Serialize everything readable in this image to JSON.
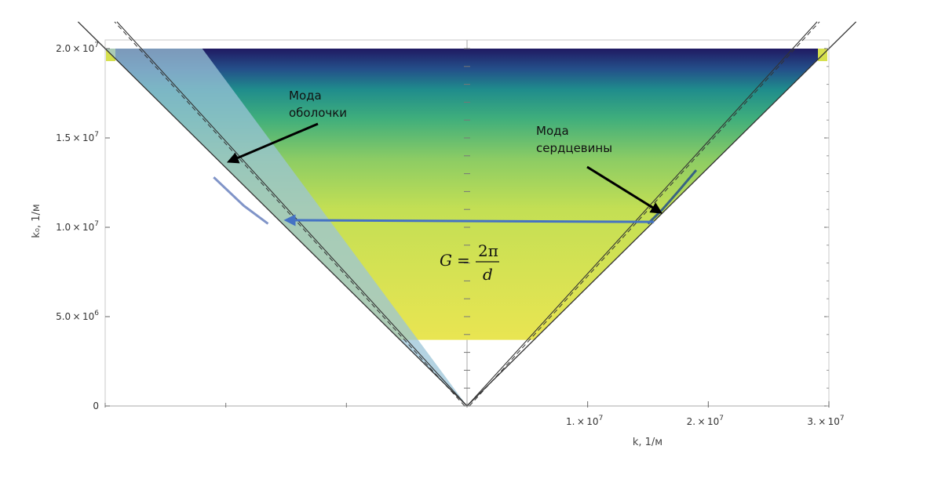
{
  "chart_data": {
    "type": "heatmap",
    "title": "",
    "xlabel": "k, 1/м",
    "ylabel": "k₀, 1/м",
    "xlim": [
      -30000000.0,
      30000000.0
    ],
    "ylim": [
      0,
      20000000.0
    ],
    "x_ticks": [
      {
        "value": 10000000.0,
        "mant": "1.",
        "exp": "7"
      },
      {
        "value": 20000000.0,
        "mant": "2.",
        "exp": "7"
      },
      {
        "value": 30000000.0,
        "mant": "3.",
        "exp": "7"
      }
    ],
    "x_minor_ticks": [
      -30000000.0,
      -20000000.0,
      -10000000.0,
      0
    ],
    "y_ticks": [
      {
        "value": 0,
        "mant": "0",
        "exp": ""
      },
      {
        "value": 5000000.0,
        "mant": "5.0",
        "exp": "6"
      },
      {
        "value": 10000000.0,
        "mant": "1.0",
        "exp": "7"
      },
      {
        "value": 15000000.0,
        "mant": "1.5",
        "exp": "7"
      },
      {
        "value": 20000000.0,
        "mant": "2.0",
        "exp": "7"
      }
    ],
    "light_lines": {
      "outer_slope": 1.5,
      "inner_slope": 1.0
    },
    "field_region": {
      "y_min": 3700000.0,
      "y_max": 20000000.0
    },
    "colormap": [
      "#e9e552",
      "#c3df54",
      "#8ccc64",
      "#3fae7c",
      "#1f8c8c",
      "#244f8a",
      "#201a62"
    ],
    "cladding_mode": {
      "label_line1": "Мода",
      "label_line2": "оболочки",
      "point": [
        -20000000.0,
        13500000.0
      ]
    },
    "core_mode": {
      "label_line1": "Мода",
      "label_line2": "сердцевины",
      "point": [
        16300000.0,
        10700000.0
      ]
    },
    "grating_vector": {
      "from": [
        15500000.0,
        10300000.0
      ],
      "to": [
        -15000000.0,
        10400000.0
      ]
    },
    "formula": {
      "lhs": "G",
      "eq": "=",
      "numerator": "2π",
      "denominator": "d"
    },
    "colors": {
      "arrow": "#4472c4",
      "light_line": "#333333",
      "shaded": "#9bc4d8",
      "annotation_arrow": "#000000"
    }
  }
}
